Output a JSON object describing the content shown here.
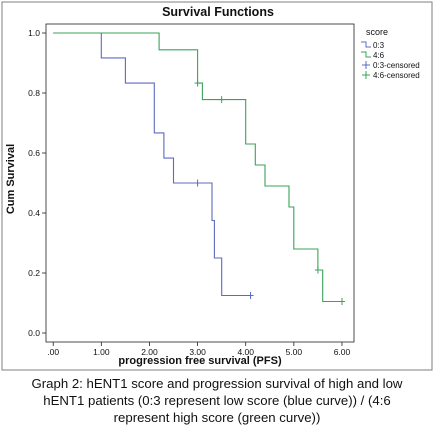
{
  "chart_data": {
    "type": "line",
    "title": "Survival Functions",
    "xlabel": "progression free survival (PFS)",
    "ylabel": "Cum Survival",
    "xlim": [
      -0.15,
      6.25
    ],
    "ylim": [
      -0.03,
      1.03
    ],
    "xticks": [
      0,
      1,
      2,
      3,
      4,
      5,
      6
    ],
    "xtick_labels": [
      ".00",
      "1.00",
      "2.00",
      "3.00",
      "4.00",
      "5.00",
      "6.00"
    ],
    "yticks": [
      0,
      0.2,
      0.4,
      0.6,
      0.8,
      1.0
    ],
    "ytick_labels": [
      "0.0",
      "0.2",
      "0.4",
      "0.6",
      "0.8",
      "1.0"
    ],
    "grid": false,
    "legend_title": "score",
    "legend_position": "top-right",
    "series": [
      {
        "name": "0:3",
        "color": "#5b6bc0",
        "style": "step",
        "points": [
          [
            0,
            1.0
          ],
          [
            1.0,
            1.0
          ],
          [
            1.0,
            0.917
          ],
          [
            1.5,
            0.917
          ],
          [
            1.5,
            0.833
          ],
          [
            2.1,
            0.833
          ],
          [
            2.1,
            0.667
          ],
          [
            2.3,
            0.667
          ],
          [
            2.3,
            0.583
          ],
          [
            2.5,
            0.583
          ],
          [
            2.5,
            0.5
          ],
          [
            3.3,
            0.5
          ],
          [
            3.3,
            0.375
          ],
          [
            3.35,
            0.375
          ],
          [
            3.35,
            0.25
          ],
          [
            3.5,
            0.25
          ],
          [
            3.5,
            0.125
          ],
          [
            4.1,
            0.125
          ]
        ]
      },
      {
        "name": "4:6",
        "color": "#3aa35a",
        "style": "step",
        "points": [
          [
            0,
            1.0
          ],
          [
            2.2,
            1.0
          ],
          [
            2.2,
            0.944
          ],
          [
            3.0,
            0.944
          ],
          [
            3.0,
            0.833
          ],
          [
            3.1,
            0.833
          ],
          [
            3.1,
            0.778
          ],
          [
            4.0,
            0.778
          ],
          [
            4.0,
            0.63
          ],
          [
            4.2,
            0.63
          ],
          [
            4.2,
            0.56
          ],
          [
            4.4,
            0.56
          ],
          [
            4.4,
            0.49
          ],
          [
            4.9,
            0.49
          ],
          [
            4.9,
            0.42
          ],
          [
            5.0,
            0.42
          ],
          [
            5.0,
            0.28
          ],
          [
            5.5,
            0.28
          ],
          [
            5.5,
            0.21
          ],
          [
            5.6,
            0.21
          ],
          [
            5.6,
            0.105
          ],
          [
            6.0,
            0.105
          ]
        ]
      }
    ],
    "censored": [
      {
        "name": "0:3-censored",
        "color": "#5b6bc0",
        "points": [
          [
            3.0,
            0.5
          ],
          [
            4.1,
            0.125
          ]
        ]
      },
      {
        "name": "4:6-censored",
        "color": "#3aa35a",
        "points": [
          [
            3.0,
            0.833
          ],
          [
            3.5,
            0.778
          ],
          [
            5.5,
            0.21
          ],
          [
            6.0,
            0.105
          ]
        ]
      }
    ]
  },
  "caption": {
    "line1": "Graph 2: hENT1 score and progression survival of high and low",
    "line2": "hENT1 patients (0:3 represent low score (blue curve)) / (4:6",
    "line3": "represent high score (green curve))"
  }
}
